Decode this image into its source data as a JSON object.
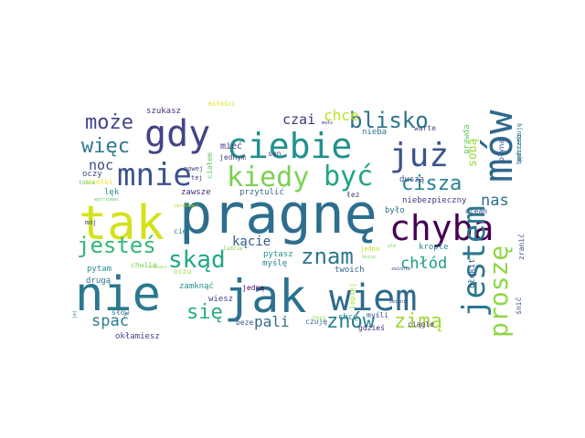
{
  "wordcloud": {
    "background_color": "#ffffff",
    "words": [
      {
        "text": "pragnę",
        "color": "#2d6e8e"
      },
      {
        "text": "nie",
        "color": "#2a788e"
      },
      {
        "text": "jak",
        "color": "#2c728e"
      },
      {
        "text": "wiem",
        "color": "#306a8e"
      },
      {
        "text": "tak",
        "color": "#d4e21a"
      },
      {
        "text": "ciebie",
        "color": "#21918c"
      },
      {
        "text": "już",
        "color": "#3b528b"
      },
      {
        "text": "mów",
        "color": "#31688e"
      },
      {
        "text": "chyba",
        "color": "#440154"
      },
      {
        "text": "jestem",
        "color": "#2a788e"
      },
      {
        "text": "gdy",
        "color": "#414487"
      },
      {
        "text": "mnie",
        "color": "#3b528b"
      },
      {
        "text": "kiedy",
        "color": "#7ad151"
      },
      {
        "text": "być",
        "color": "#20a486"
      },
      {
        "text": "proszę",
        "color": "#8fd744"
      },
      {
        "text": "jesteś",
        "color": "#35b779"
      },
      {
        "text": "skąd",
        "color": "#22a884"
      },
      {
        "text": "znam",
        "color": "#2a788e"
      },
      {
        "text": "cisza",
        "color": "#25858e"
      },
      {
        "text": "blisko",
        "color": "#2c728e"
      },
      {
        "text": "może",
        "color": "#414487"
      },
      {
        "text": "więc",
        "color": "#2a788e"
      },
      {
        "text": "zimą",
        "color": "#a0da39"
      },
      {
        "text": "znów",
        "color": "#26828e"
      },
      {
        "text": "się",
        "color": "#27ad81"
      },
      {
        "text": "chce",
        "color": "#bddf26"
      },
      {
        "text": "czai",
        "color": "#46327e"
      },
      {
        "text": "nas",
        "color": "#2e6e8e"
      },
      {
        "text": "chłód",
        "color": "#1e9b8a"
      },
      {
        "text": "noc",
        "color": "#3e4a89"
      },
      {
        "text": "kącie",
        "color": "#365d8d"
      },
      {
        "text": "pali",
        "color": "#2d708e"
      },
      {
        "text": "spać",
        "color": "#287d8e"
      },
      {
        "text": "sobą",
        "color": "#9bd93c"
      },
      {
        "text": "mieć",
        "color": "#453781"
      },
      {
        "text": "szukasz",
        "color": "#472c7a"
      },
      {
        "text": "miłości",
        "color": "#dde318"
      },
      {
        "text": "wielki",
        "color": "#fde725"
      },
      {
        "text": "nowej",
        "color": "#3f4788"
      },
      {
        "text": "jednym",
        "color": "#414487"
      },
      {
        "text": "sen",
        "color": "#433e85"
      },
      {
        "text": "nieba",
        "color": "#2a768e"
      },
      {
        "text": "warte",
        "color": "#414487"
      },
      {
        "text": "płyną",
        "color": "#3b528b"
      },
      {
        "text": "prawda",
        "color": "#5ec962"
      },
      {
        "text": "będziesz",
        "color": "#2a788e"
      },
      {
        "text": "potrzebuję",
        "color": "#2a788e"
      },
      {
        "text": "oczy",
        "color": "#3f4788"
      },
      {
        "text": "tobie",
        "color": "#5ec962"
      },
      {
        "text": "ciałem",
        "color": "#5ec962"
      },
      {
        "text": "tej",
        "color": "#46327e"
      },
      {
        "text": "lęk",
        "color": "#21918c"
      },
      {
        "text": "zawsze",
        "color": "#482878"
      },
      {
        "text": "przytulić",
        "color": "#31688e"
      },
      {
        "text": "duszą",
        "color": "#3b528b"
      },
      {
        "text": "łez",
        "color": "#453781"
      },
      {
        "text": "niebezpieczny",
        "color": "#443983"
      },
      {
        "text": "wytrzymać",
        "color": "#5ec962"
      },
      {
        "text": "mój",
        "color": "#3f4788"
      },
      {
        "text": "zmieniasz",
        "color": "#b5de2b"
      },
      {
        "text": "cię",
        "color": "#26828e"
      },
      {
        "text": "było",
        "color": "#2e6f8e"
      },
      {
        "text": "ocean",
        "color": "#3e4989"
      },
      {
        "text": "krople",
        "color": "#24878e"
      },
      {
        "text": "zranić",
        "color": "#3b528b"
      },
      {
        "text": "ludzie",
        "color": "#7ad151"
      },
      {
        "text": "jedna",
        "color": "#bddf26"
      },
      {
        "text": "boisz",
        "color": "#7ad151"
      },
      {
        "text": "pytam",
        "color": "#21918c"
      },
      {
        "text": "pytasz",
        "color": "#21918c"
      },
      {
        "text": "twoich",
        "color": "#33638d"
      },
      {
        "text": "zwinnie",
        "color": "#3f4788"
      },
      {
        "text": "chwile",
        "color": "#7ad151"
      },
      {
        "text": "drugą",
        "color": "#2c738e"
      },
      {
        "text": "wracasz",
        "color": "#8fd744"
      },
      {
        "text": "oczu",
        "color": "#a0da39"
      },
      {
        "text": "myślę",
        "color": "#25838e"
      },
      {
        "text": "lepiej",
        "color": "#a0da39"
      },
      {
        "text": "błękit",
        "color": "#365c8d"
      },
      {
        "text": "śnić",
        "color": "#3b528b"
      },
      {
        "text": "zamknąć",
        "color": "#20928c"
      },
      {
        "text": "jedną",
        "color": "#440154"
      },
      {
        "text": "wiesz",
        "color": "#3f4788"
      },
      {
        "text": "słów",
        "color": "#2a788e"
      },
      {
        "text": "jej",
        "color": "#2d708e"
      },
      {
        "text": "beze",
        "color": "#3b528b"
      },
      {
        "text": "czuję",
        "color": "#31688e"
      },
      {
        "text": "myśli",
        "color": "#3b528b"
      },
      {
        "text": "gdzieś",
        "color": "#482878"
      },
      {
        "text": "ciągle",
        "color": "#46327e"
      },
      {
        "text": "okłamiesz",
        "color": "#414487"
      },
      {
        "text": "nocy",
        "color": "#8fd744"
      },
      {
        "text": "chcę",
        "color": "#2a788e"
      },
      {
        "text": "mało",
        "color": "#414487"
      },
      {
        "text": "ale",
        "color": "#7ad151"
      },
      {
        "text": "zmienić",
        "color": "#3b528b"
      }
    ]
  }
}
